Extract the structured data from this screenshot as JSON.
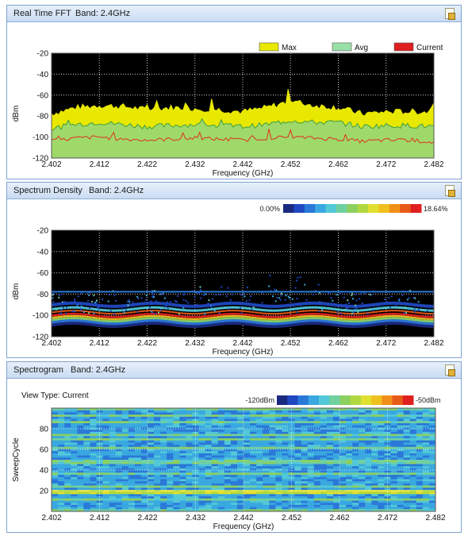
{
  "panels": {
    "fft": {
      "title": "Real Time FFT",
      "band": "Band: 2.4GHz",
      "legend": [
        {
          "label": "Max",
          "color": "#e8e800"
        },
        {
          "label": "Avg",
          "color": "#98e0a8"
        },
        {
          "label": "Current",
          "color": "#e02020"
        }
      ]
    },
    "density": {
      "title": "Spectrum Density",
      "band": "Band: 2.4GHz",
      "scale_min": "0.00%",
      "scale_max": "18.64%"
    },
    "spectrogram": {
      "title": "Spectrogram",
      "band": "Band: 2.4GHz",
      "view_type": "View Type: Current",
      "scale_min": "-120dBm",
      "scale_max": "-50dBm"
    }
  },
  "chart_data": [
    {
      "type": "area",
      "title": "Real Time FFT",
      "xlabel": "Frequency (GHz)",
      "ylabel": "dBm",
      "xlim": [
        2.402,
        2.482
      ],
      "ylim": [
        -120,
        -20
      ],
      "xticks": [
        "2.402",
        "2.412",
        "2.422",
        "2.432",
        "2.442",
        "2.452",
        "2.462",
        "2.472",
        "2.482"
      ],
      "yticks": [
        "-20",
        "-40",
        "-60",
        "-80",
        "-100",
        "-120"
      ],
      "x": [
        2.402,
        2.407,
        2.412,
        2.417,
        2.422,
        2.427,
        2.432,
        2.437,
        2.442,
        2.447,
        2.452,
        2.457,
        2.462,
        2.467,
        2.472,
        2.477,
        2.482
      ],
      "series": [
        {
          "name": "Max",
          "color": "#e8e800",
          "values": [
            -78,
            -72,
            -70,
            -71,
            -74,
            -72,
            -73,
            -74,
            -76,
            -72,
            -66,
            -70,
            -72,
            -78,
            -76,
            -76,
            -76
          ]
        },
        {
          "name": "Avg",
          "color": "#3f9f3f",
          "values": [
            -92,
            -88,
            -86,
            -88,
            -90,
            -89,
            -88,
            -89,
            -90,
            -88,
            -84,
            -86,
            -86,
            -90,
            -89,
            -89,
            -90
          ]
        },
        {
          "name": "Current",
          "color": "#e03020",
          "values": [
            -104,
            -101,
            -100,
            -102,
            -103,
            -102,
            -101,
            -102,
            -103,
            -101,
            -100,
            -101,
            -102,
            -104,
            -103,
            -103,
            -105
          ]
        }
      ],
      "grid": true,
      "legend": "top-right"
    },
    {
      "type": "heatmap",
      "title": "Spectrum Density",
      "xlabel": "Frequency (GHz)",
      "ylabel": "dBm",
      "xlim": [
        2.402,
        2.482
      ],
      "ylim": [
        -120,
        -20
      ],
      "xticks": [
        "2.402",
        "2.412",
        "2.422",
        "2.432",
        "2.442",
        "2.452",
        "2.462",
        "2.472",
        "2.482"
      ],
      "yticks": [
        "-20",
        "-40",
        "-60",
        "-80",
        "-100",
        "-120"
      ],
      "scale": [
        "0.00%",
        "18.64%"
      ],
      "grid": true
    },
    {
      "type": "heatmap",
      "title": "Spectrogram",
      "xlabel": "Frequency (GHz)",
      "ylabel": "SweepCycle",
      "xlim": [
        2.402,
        2.482
      ],
      "ylim": [
        0,
        100
      ],
      "xticks": [
        "2.402",
        "2.412",
        "2.422",
        "2.432",
        "2.442",
        "2.452",
        "2.462",
        "2.472",
        "2.482"
      ],
      "yticks": [
        "80",
        "60",
        "40",
        "20"
      ],
      "scale": [
        "-120dBm",
        "-50dBm"
      ],
      "grid": true
    }
  ]
}
